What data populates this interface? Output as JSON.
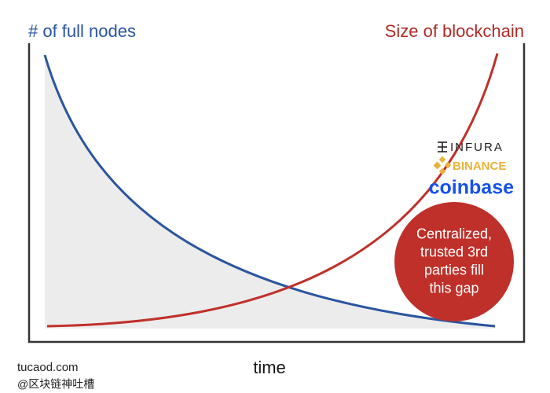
{
  "header": {
    "left_label": "# of full nodes",
    "right_label": "Size of blockchain"
  },
  "logos": {
    "infura": "INFURA",
    "binance": "BINANCE",
    "coinbase": "coinbase"
  },
  "callout": {
    "lines": [
      "Centralized,",
      "trusted 3rd",
      "parties fill",
      "this gap"
    ]
  },
  "x_label": "time",
  "watermark": {
    "site": "tucaod.com",
    "handle": "@区块链神吐槽"
  }
}
